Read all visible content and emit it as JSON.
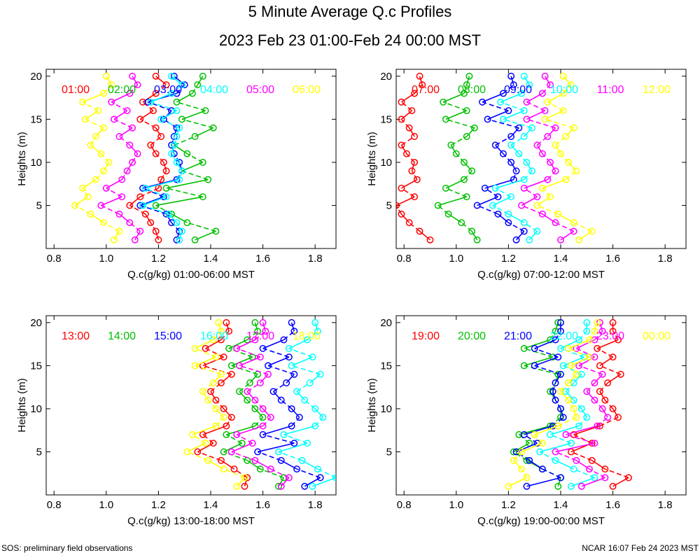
{
  "header": {
    "title": "5 Minute Average Q.c Profiles",
    "subtitle": "2023 Feb 23 01:00-Feb 24 00:00 MST"
  },
  "footer": {
    "left": "SOS: preliminary field observations",
    "right": "NCAR 16:07 Feb 24 2023 MST"
  },
  "colors": [
    "#ff0000",
    "#00c000",
    "#0000ff",
    "#00ffff",
    "#ff00ff",
    "#ffff00"
  ],
  "chart_data": [
    {
      "type": "line",
      "title": "",
      "xlabel": "Q.c(g/kg) 01:00-06:00 MST",
      "ylabel": "Heights (m)",
      "xlim": [
        0.77,
        1.88
      ],
      "ylim": [
        0,
        20.8
      ],
      "xticks": [
        0.8,
        1.0,
        1.2,
        1.4,
        1.6,
        1.8
      ],
      "xtick_labels": [
        "0.8",
        "1.0",
        "1.2",
        "1.4",
        "1.6",
        "1.8"
      ],
      "yticks": [
        5,
        10,
        15,
        20
      ],
      "ytick_labels": [
        "5",
        "10",
        "15",
        "20"
      ],
      "heights": [
        1,
        2,
        3,
        4,
        5,
        6,
        7,
        8,
        9,
        10,
        11,
        12,
        13,
        14,
        15,
        16,
        17,
        18,
        19,
        20
      ],
      "series": [
        {
          "name": "01:00",
          "values": [
            1.2,
            1.19,
            1.17,
            1.15,
            1.09,
            1.13,
            1.2,
            1.21,
            1.23,
            1.22,
            1.19,
            1.17,
            1.21,
            1.19,
            1.13,
            1.18,
            1.14,
            1.19,
            1.23,
            1.19
          ]
        },
        {
          "name": "02:00",
          "values": [
            1.34,
            1.42,
            1.31,
            1.25,
            1.19,
            1.37,
            1.23,
            1.39,
            1.29,
            1.37,
            1.31,
            1.26,
            1.34,
            1.41,
            1.29,
            1.38,
            1.27,
            1.33,
            1.35,
            1.37
          ]
        },
        {
          "name": "03:00",
          "values": [
            1.27,
            1.28,
            1.25,
            1.23,
            1.13,
            1.22,
            1.14,
            1.27,
            1.29,
            1.28,
            1.26,
            1.25,
            1.26,
            1.27,
            1.22,
            1.25,
            1.16,
            1.27,
            1.3,
            1.26
          ]
        },
        {
          "name": "04:00",
          "values": [
            1.28,
            1.29,
            1.27,
            1.24,
            1.14,
            1.23,
            1.15,
            1.28,
            1.29,
            1.27,
            1.25,
            1.26,
            1.27,
            1.28,
            1.21,
            1.27,
            1.17,
            1.25,
            1.29,
            1.25
          ]
        },
        {
          "name": "05:00",
          "values": [
            1.11,
            1.13,
            1.09,
            1.05,
            0.98,
            1.06,
            1.0,
            1.06,
            1.08,
            1.1,
            1.12,
            1.09,
            1.05,
            1.1,
            1.03,
            1.08,
            1.02,
            1.09,
            1.12,
            1.1
          ]
        },
        {
          "name": "06:00",
          "values": [
            1.03,
            1.05,
            0.99,
            0.94,
            0.88,
            0.93,
            0.91,
            0.96,
            0.99,
            1.01,
            0.98,
            0.94,
            0.96,
            0.99,
            0.92,
            0.97,
            0.91,
            0.99,
            1.02,
            1.0
          ]
        }
      ]
    },
    {
      "type": "line",
      "title": "",
      "xlabel": "Q.c(g/kg) 07:00-12:00 MST",
      "ylabel": "Heights (m)",
      "xlim": [
        0.77,
        1.88
      ],
      "ylim": [
        0,
        20.8
      ],
      "xticks": [
        0.8,
        1.0,
        1.2,
        1.4,
        1.6,
        1.8
      ],
      "xtick_labels": [
        "0.8",
        "1.0",
        "1.2",
        "1.4",
        "1.6",
        "1.8"
      ],
      "yticks": [
        5,
        10,
        15,
        20
      ],
      "ytick_labels": [
        "5",
        "10",
        "15",
        "20"
      ],
      "heights": [
        1,
        2,
        3,
        4,
        5,
        6,
        7,
        8,
        9,
        10,
        11,
        12,
        13,
        14,
        15,
        16,
        17,
        18,
        19,
        20
      ],
      "series": [
        {
          "name": "07:00",
          "values": [
            0.9,
            0.86,
            0.82,
            0.79,
            0.77,
            0.84,
            0.79,
            0.85,
            0.83,
            0.84,
            0.81,
            0.79,
            0.84,
            0.82,
            0.79,
            0.83,
            0.79,
            0.84,
            0.87,
            0.86
          ]
        },
        {
          "name": "08:00",
          "values": [
            1.08,
            1.06,
            1.02,
            0.97,
            0.93,
            1.04,
            0.96,
            1.03,
            1.06,
            1.03,
            1.0,
            0.98,
            1.04,
            1.07,
            0.96,
            1.04,
            0.95,
            1.03,
            1.04,
            1.05
          ]
        },
        {
          "name": "09:00",
          "values": [
            1.23,
            1.26,
            1.2,
            1.16,
            1.08,
            1.16,
            1.11,
            1.22,
            1.23,
            1.21,
            1.18,
            1.15,
            1.21,
            1.24,
            1.12,
            1.2,
            1.1,
            1.18,
            1.22,
            1.21
          ]
        },
        {
          "name": "10:00",
          "values": [
            1.28,
            1.31,
            1.26,
            1.2,
            1.14,
            1.21,
            1.15,
            1.26,
            1.29,
            1.27,
            1.24,
            1.21,
            1.26,
            1.29,
            1.18,
            1.26,
            1.17,
            1.25,
            1.28,
            1.26
          ]
        },
        {
          "name": "11:00",
          "values": [
            1.4,
            1.45,
            1.38,
            1.33,
            1.25,
            1.31,
            1.26,
            1.35,
            1.38,
            1.36,
            1.33,
            1.31,
            1.35,
            1.38,
            1.27,
            1.34,
            1.27,
            1.33,
            1.36,
            1.34
          ]
        },
        {
          "name": "12:00",
          "values": [
            1.47,
            1.52,
            1.45,
            1.39,
            1.31,
            1.36,
            1.33,
            1.42,
            1.46,
            1.43,
            1.4,
            1.38,
            1.42,
            1.45,
            1.34,
            1.41,
            1.35,
            1.41,
            1.44,
            1.41
          ]
        }
      ]
    },
    {
      "type": "line",
      "title": "",
      "xlabel": "Q.c(g/kg) 13:00-18:00 MST",
      "ylabel": "Heights (m)",
      "xlim": [
        0.77,
        1.88
      ],
      "ylim": [
        0,
        20.8
      ],
      "xticks": [
        0.8,
        1.0,
        1.2,
        1.4,
        1.6,
        1.8
      ],
      "xtick_labels": [
        "0.8",
        "1.0",
        "1.2",
        "1.4",
        "1.6",
        "1.8"
      ],
      "yticks": [
        5,
        10,
        15,
        20
      ],
      "ytick_labels": [
        "5",
        "10",
        "15",
        "20"
      ],
      "heights": [
        1,
        2,
        3,
        4,
        5,
        6,
        7,
        8,
        9,
        10,
        11,
        12,
        13,
        14,
        15,
        16,
        17,
        18,
        19,
        20
      ],
      "series": [
        {
          "name": "13:00",
          "values": [
            1.53,
            1.54,
            1.49,
            1.44,
            1.35,
            1.41,
            1.37,
            1.46,
            1.48,
            1.45,
            1.42,
            1.4,
            1.44,
            1.48,
            1.37,
            1.45,
            1.38,
            1.44,
            1.47,
            1.46
          ]
        },
        {
          "name": "14:00",
          "values": [
            1.66,
            1.68,
            1.59,
            1.54,
            1.45,
            1.52,
            1.46,
            1.57,
            1.6,
            1.57,
            1.54,
            1.51,
            1.55,
            1.58,
            1.48,
            1.56,
            1.47,
            1.54,
            1.58,
            1.57
          ]
        },
        {
          "name": "15:00",
          "values": [
            1.76,
            1.82,
            1.73,
            1.67,
            1.58,
            1.72,
            1.6,
            1.71,
            1.74,
            1.71,
            1.67,
            1.64,
            1.69,
            1.72,
            1.62,
            1.7,
            1.6,
            1.68,
            1.72,
            1.71
          ]
        },
        {
          "name": "16:00",
          "values": [
            1.79,
            1.88,
            1.81,
            1.75,
            1.66,
            1.77,
            1.68,
            1.8,
            1.83,
            1.8,
            1.76,
            1.73,
            1.78,
            1.82,
            1.71,
            1.79,
            1.7,
            1.77,
            1.81,
            1.8
          ]
        },
        {
          "name": "17:00",
          "values": [
            1.67,
            1.7,
            1.63,
            1.57,
            1.48,
            1.56,
            1.5,
            1.6,
            1.63,
            1.6,
            1.57,
            1.54,
            1.59,
            1.62,
            1.51,
            1.59,
            1.5,
            1.57,
            1.61,
            1.6
          ]
        },
        {
          "name": "18:00",
          "values": [
            1.5,
            1.53,
            1.45,
            1.39,
            1.31,
            1.38,
            1.33,
            1.42,
            1.45,
            1.42,
            1.39,
            1.37,
            1.41,
            1.44,
            1.34,
            1.42,
            1.34,
            1.41,
            1.44,
            1.43
          ]
        }
      ]
    },
    {
      "type": "line",
      "title": "",
      "xlabel": "Q.c(g/kg) 19:00-00:00 MST",
      "ylabel": "Heights (m)",
      "xlim": [
        0.77,
        1.88
      ],
      "ylim": [
        0,
        20.8
      ],
      "xticks": [
        0.8,
        1.0,
        1.2,
        1.4,
        1.6,
        1.8
      ],
      "xtick_labels": [
        "0.8",
        "1.0",
        "1.2",
        "1.4",
        "1.6",
        "1.8"
      ],
      "yticks": [
        5,
        10,
        15,
        20
      ],
      "ytick_labels": [
        "5",
        "10",
        "15",
        "20"
      ],
      "heights": [
        1,
        2,
        3,
        4,
        5,
        6,
        7,
        8,
        9,
        10,
        11,
        12,
        13,
        14,
        15,
        16,
        17,
        18,
        19,
        20
      ],
      "series": [
        {
          "name": "19:00",
          "values": [
            1.6,
            1.66,
            1.57,
            1.52,
            1.44,
            1.52,
            1.45,
            1.55,
            1.62,
            1.6,
            1.57,
            1.55,
            1.58,
            1.63,
            1.55,
            1.6,
            1.54,
            1.62,
            1.6,
            1.6
          ]
        },
        {
          "name": "20:00",
          "values": [
            1.39,
            1.4,
            1.33,
            1.27,
            1.22,
            1.28,
            1.24,
            1.36,
            1.4,
            1.4,
            1.38,
            1.36,
            1.38,
            1.39,
            1.26,
            1.37,
            1.26,
            1.36,
            1.38,
            1.39
          ]
        },
        {
          "name": "21:00",
          "values": [
            1.27,
            1.4,
            1.33,
            1.28,
            1.23,
            1.31,
            1.26,
            1.37,
            1.41,
            1.4,
            1.38,
            1.37,
            1.38,
            1.4,
            1.3,
            1.39,
            1.3,
            1.38,
            1.4,
            1.4
          ]
        },
        {
          "name": "22:00",
          "values": [
            1.44,
            1.53,
            1.45,
            1.38,
            1.32,
            1.44,
            1.36,
            1.47,
            1.5,
            1.48,
            1.45,
            1.42,
            1.45,
            1.48,
            1.41,
            1.49,
            1.4,
            1.47,
            1.5,
            1.5
          ]
        },
        {
          "name": "23:00",
          "values": [
            1.48,
            1.57,
            1.51,
            1.46,
            1.38,
            1.53,
            1.42,
            1.54,
            1.58,
            1.56,
            1.53,
            1.5,
            1.53,
            1.56,
            1.47,
            1.53,
            1.46,
            1.53,
            1.56,
            1.55
          ]
        },
        {
          "name": "00:00",
          "values": [
            1.2,
            1.27,
            1.25,
            1.22,
            1.25,
            1.33,
            1.3,
            1.39,
            1.46,
            1.45,
            1.43,
            1.4,
            1.43,
            1.46,
            1.44,
            1.51,
            1.43,
            1.51,
            1.53,
            1.54
          ]
        }
      ]
    }
  ]
}
